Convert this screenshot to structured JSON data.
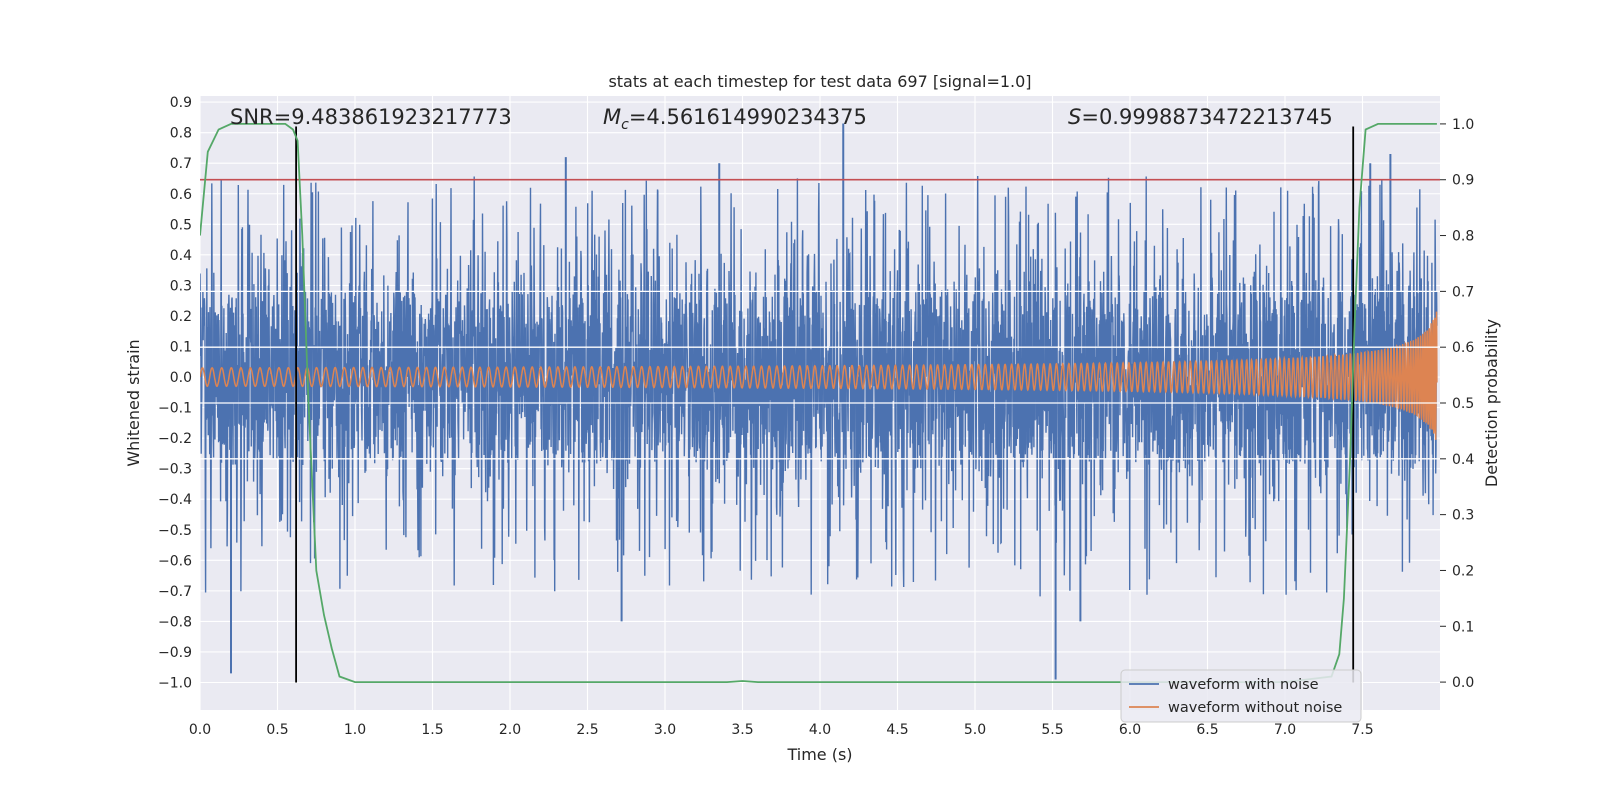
{
  "chart_data": {
    "type": "line",
    "title": "stats at each timestep for test data 697 [signal=1.0]",
    "xlabel": "Time (s)",
    "ylabel": "Whitened strain",
    "y2label": "Detection probability",
    "xlim": [
      0.0,
      8.0
    ],
    "ylim": [
      -1.09,
      0.92
    ],
    "y2lim": [
      -0.05,
      1.05
    ],
    "x_ticks": [
      0.0,
      0.5,
      1.0,
      1.5,
      2.0,
      2.5,
      3.0,
      3.5,
      4.0,
      4.5,
      5.0,
      5.5,
      6.0,
      6.5,
      7.0,
      7.5
    ],
    "x_tick_labels": [
      "0.0",
      "0.5",
      "1.0",
      "1.5",
      "2.0",
      "2.5",
      "3.0",
      "3.5",
      "4.0",
      "4.5",
      "5.0",
      "5.5",
      "6.0",
      "6.5",
      "7.0",
      "7.5"
    ],
    "y_ticks": [
      0.9,
      0.8,
      0.7,
      0.6,
      0.5,
      0.4,
      0.3,
      0.2,
      0.1,
      0.0,
      -0.1,
      -0.2,
      -0.3,
      -0.4,
      -0.5,
      -0.6,
      -0.7,
      -0.8,
      -0.9,
      -1.0
    ],
    "y_tick_labels": [
      "0.9",
      "0.8",
      "0.7",
      "0.6",
      "0.5",
      "0.4",
      "0.3",
      "0.2",
      "0.1",
      "0.0",
      "−0.1",
      "−0.2",
      "−0.3",
      "−0.4",
      "−0.5",
      "−0.6",
      "−0.7",
      "−0.8",
      "−0.9",
      "−1.0"
    ],
    "y2_ticks": [
      1.0,
      0.9,
      0.8,
      0.7,
      0.6,
      0.5,
      0.4,
      0.3,
      0.2,
      0.1,
      0.0
    ],
    "y2_tick_labels": [
      "1.0",
      "0.9",
      "0.8",
      "0.7",
      "0.6",
      "0.5",
      "0.4",
      "0.3",
      "0.2",
      "0.1",
      "0.0"
    ],
    "grid": true,
    "annotations": {
      "snr_label": "SNR=9.483861923217773",
      "mc_symbol": "M",
      "mc_subscript": "c",
      "mc_value": "=4.561614990234375",
      "s_symbol": "S",
      "s_value": "=0.9998873472213745"
    },
    "threshold": {
      "value": 0.9,
      "axis": "y2",
      "color": "#c44e52"
    },
    "vertical_markers": {
      "x": [
        0.62,
        7.44
      ],
      "y_range": [
        -1.0,
        0.82
      ],
      "color": "#000000"
    },
    "series": [
      {
        "name": "waveform with noise",
        "color": "#4c72b0",
        "axis": "y",
        "envelope_samples": {
          "base_half_width": 0.28,
          "typical_peak": 0.5,
          "sample_rate_hz": 2048
        },
        "notable_peaks": [
          {
            "x": 0.2,
            "y": -0.97
          },
          {
            "x": 2.36,
            "y": 0.72
          },
          {
            "x": 2.72,
            "y": -0.8
          },
          {
            "x": 3.35,
            "y": 0.7
          },
          {
            "x": 4.15,
            "y": 0.83
          },
          {
            "x": 5.52,
            "y": -0.99
          },
          {
            "x": 5.68,
            "y": -0.8
          },
          {
            "x": 7.55,
            "y": 0.7
          },
          {
            "x": 7.68,
            "y": 0.73
          }
        ]
      },
      {
        "name": "waveform without noise",
        "color": "#dd8452",
        "axis": "y",
        "chirp": {
          "f0_hz": 16,
          "amp_start": 0.015,
          "amp_end": 0.23,
          "t_merge": 8.05
        }
      },
      {
        "name": "detection probability",
        "color": "#55a868",
        "axis": "y2",
        "x": [
          0.0,
          0.05,
          0.12,
          0.2,
          0.3,
          0.45,
          0.55,
          0.6,
          0.63,
          0.66,
          0.7,
          0.75,
          0.8,
          0.85,
          0.9,
          1.0,
          2.0,
          3.0,
          3.4,
          3.5,
          3.6,
          3.7,
          4.5,
          5.5,
          6.5,
          7.0,
          7.3,
          7.35,
          7.38,
          7.42,
          7.45,
          7.48,
          7.52,
          7.6,
          8.0
        ],
        "values": [
          0.8,
          0.95,
          0.99,
          1.0,
          1.0,
          1.0,
          1.0,
          0.99,
          0.97,
          0.8,
          0.5,
          0.2,
          0.12,
          0.06,
          0.01,
          0.0,
          0.0,
          0.0,
          0.0,
          0.002,
          0.0,
          0.0,
          0.0,
          0.0,
          0.0,
          0.0,
          0.01,
          0.05,
          0.15,
          0.4,
          0.65,
          0.85,
          0.99,
          1.0,
          1.0
        ]
      }
    ],
    "legend": {
      "placement": "lower-right",
      "entries": [
        {
          "label": "waveform with noise",
          "color": "#4c72b0"
        },
        {
          "label": "waveform without noise",
          "color": "#dd8452"
        }
      ]
    }
  }
}
